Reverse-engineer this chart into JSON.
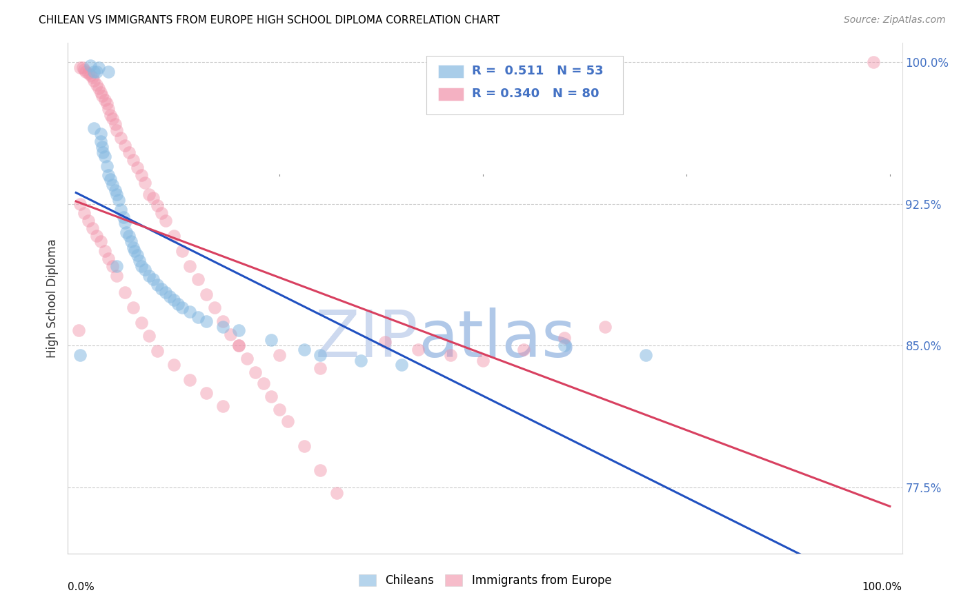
{
  "title": "CHILEAN VS IMMIGRANTS FROM EUROPE HIGH SCHOOL DIPLOMA CORRELATION CHART",
  "source": "Source: ZipAtlas.com",
  "ylabel": "High School Diploma",
  "xlim": [
    0.0,
    1.0
  ],
  "ylim": [
    0.74,
    1.01
  ],
  "yticks": [
    0.775,
    0.85,
    0.925,
    1.0
  ],
  "ytick_labels": [
    "77.5%",
    "85.0%",
    "92.5%",
    "100.0%"
  ],
  "chilean_color": "#85b8e0",
  "immigrant_color": "#f090a8",
  "trend_chilean_color": "#2050c0",
  "trend_immigrant_color": "#d84060",
  "watermark_color": "#cdd9ef",
  "axis_label_color": "#4472c4",
  "R_chilean": "0.511",
  "N_chilean": "53",
  "R_immigrant": "0.340",
  "N_immigrant": "80",
  "legend_label_chilean": "Chileans",
  "legend_label_immigrant": "Immigrants from Europe",
  "chilean_points_x": [
    0.005,
    0.018,
    0.022,
    0.022,
    0.025,
    0.028,
    0.03,
    0.03,
    0.032,
    0.033,
    0.035,
    0.038,
    0.04,
    0.04,
    0.042,
    0.045,
    0.048,
    0.05,
    0.05,
    0.052,
    0.055,
    0.058,
    0.06,
    0.062,
    0.065,
    0.068,
    0.07,
    0.072,
    0.075,
    0.078,
    0.08,
    0.085,
    0.09,
    0.095,
    0.1,
    0.105,
    0.11,
    0.115,
    0.12,
    0.125,
    0.13,
    0.14,
    0.15,
    0.16,
    0.18,
    0.2,
    0.24,
    0.28,
    0.3,
    0.35,
    0.4,
    0.6,
    0.7
  ],
  "chilean_points_y": [
    0.845,
    0.998,
    0.995,
    0.965,
    0.995,
    0.997,
    0.962,
    0.958,
    0.955,
    0.952,
    0.95,
    0.945,
    0.995,
    0.94,
    0.938,
    0.935,
    0.932,
    0.93,
    0.892,
    0.927,
    0.922,
    0.918,
    0.915,
    0.91,
    0.908,
    0.905,
    0.902,
    0.9,
    0.898,
    0.895,
    0.892,
    0.89,
    0.887,
    0.885,
    0.882,
    0.88,
    0.878,
    0.876,
    0.874,
    0.872,
    0.87,
    0.868,
    0.865,
    0.863,
    0.86,
    0.858,
    0.853,
    0.848,
    0.845,
    0.842,
    0.84,
    0.85,
    0.845
  ],
  "immigrant_points_x": [
    0.003,
    0.005,
    0.008,
    0.01,
    0.012,
    0.015,
    0.018,
    0.02,
    0.022,
    0.025,
    0.028,
    0.03,
    0.032,
    0.035,
    0.038,
    0.04,
    0.042,
    0.045,
    0.048,
    0.05,
    0.055,
    0.06,
    0.065,
    0.07,
    0.075,
    0.08,
    0.085,
    0.09,
    0.095,
    0.1,
    0.105,
    0.11,
    0.12,
    0.13,
    0.14,
    0.15,
    0.16,
    0.17,
    0.18,
    0.19,
    0.2,
    0.21,
    0.22,
    0.23,
    0.24,
    0.25,
    0.26,
    0.28,
    0.3,
    0.32,
    0.005,
    0.01,
    0.015,
    0.02,
    0.025,
    0.03,
    0.035,
    0.04,
    0.045,
    0.05,
    0.06,
    0.07,
    0.08,
    0.09,
    0.1,
    0.12,
    0.14,
    0.16,
    0.18,
    0.2,
    0.25,
    0.3,
    0.38,
    0.42,
    0.46,
    0.5,
    0.55,
    0.6,
    0.65,
    0.98
  ],
  "immigrant_points_y": [
    0.858,
    0.997,
    0.997,
    0.996,
    0.995,
    0.994,
    0.993,
    0.992,
    0.99,
    0.988,
    0.986,
    0.984,
    0.982,
    0.98,
    0.978,
    0.975,
    0.972,
    0.97,
    0.967,
    0.964,
    0.96,
    0.956,
    0.952,
    0.948,
    0.944,
    0.94,
    0.936,
    0.93,
    0.928,
    0.924,
    0.92,
    0.916,
    0.908,
    0.9,
    0.892,
    0.885,
    0.877,
    0.87,
    0.863,
    0.856,
    0.85,
    0.843,
    0.836,
    0.83,
    0.823,
    0.816,
    0.81,
    0.797,
    0.784,
    0.772,
    0.925,
    0.92,
    0.916,
    0.912,
    0.908,
    0.905,
    0.9,
    0.896,
    0.892,
    0.887,
    0.878,
    0.87,
    0.862,
    0.855,
    0.847,
    0.84,
    0.832,
    0.825,
    0.818,
    0.85,
    0.845,
    0.838,
    0.852,
    0.848,
    0.845,
    0.842,
    0.848,
    0.854,
    0.86,
    1.0
  ]
}
